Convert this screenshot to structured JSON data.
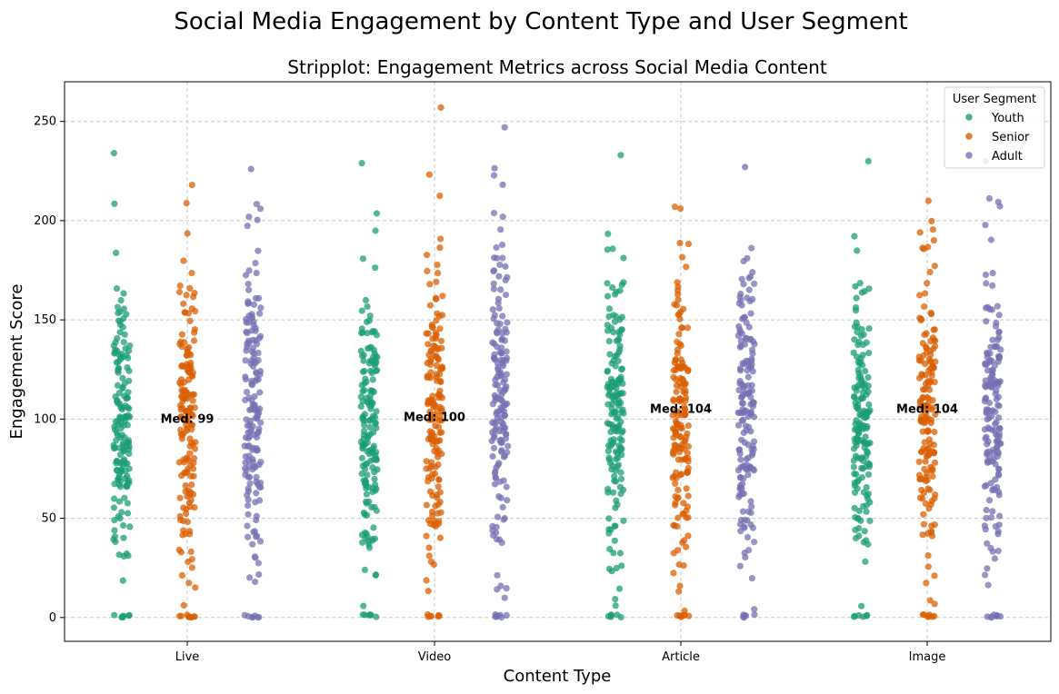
{
  "chart_data": {
    "type": "scatter",
    "subtype": "stripplot",
    "suptitle": "Social Media Engagement by Content Type and User Segment",
    "title": "Stripplot: Engagement Metrics across Social Media Content",
    "xlabel": "Content Type",
    "ylabel": "Engagement Score",
    "categories": [
      "Live",
      "Video",
      "Article",
      "Image"
    ],
    "ylim": [
      -12,
      270
    ],
    "yticks": [
      0,
      50,
      100,
      150,
      200,
      250
    ],
    "grid": true,
    "legend": {
      "title": "User Segment",
      "placement": "top-right"
    },
    "series": [
      {
        "name": "Youth",
        "color": "#1b9e77"
      },
      {
        "name": "Senior",
        "color": "#d95f02"
      },
      {
        "name": "Adult",
        "color": "#7570b3"
      }
    ],
    "medians": [
      {
        "category": "Live",
        "label": "Med: 99",
        "value": 99
      },
      {
        "category": "Video",
        "label": "Med: 100",
        "value": 100
      },
      {
        "category": "Article",
        "label": "Med: 104",
        "value": 104
      },
      {
        "category": "Image",
        "label": "Med: 104",
        "value": 104
      }
    ],
    "distribution": {
      "Live": {
        "Youth": {
          "median": 100,
          "std": 52,
          "min": 0,
          "max": 234
        },
        "Senior": {
          "median": 98,
          "std": 55,
          "min": 0,
          "max": 218
        },
        "Adult": {
          "median": 105,
          "std": 55,
          "min": 0,
          "max": 226
        }
      },
      "Video": {
        "Youth": {
          "median": 100,
          "std": 52,
          "min": 0,
          "max": 229
        },
        "Senior": {
          "median": 102,
          "std": 56,
          "min": 0,
          "max": 257
        },
        "Adult": {
          "median": 110,
          "std": 52,
          "min": 0,
          "max": 247
        }
      },
      "Article": {
        "Youth": {
          "median": 105,
          "std": 54,
          "min": 0,
          "max": 233
        },
        "Senior": {
          "median": 102,
          "std": 54,
          "min": 0,
          "max": 207
        },
        "Adult": {
          "median": 108,
          "std": 54,
          "min": 0,
          "max": 227
        }
      },
      "Image": {
        "Youth": {
          "median": 100,
          "std": 55,
          "min": 0,
          "max": 230
        },
        "Senior": {
          "median": 100,
          "std": 52,
          "min": 0,
          "max": 210
        },
        "Adult": {
          "median": 103,
          "std": 55,
          "min": 0,
          "max": 230
        }
      }
    }
  }
}
